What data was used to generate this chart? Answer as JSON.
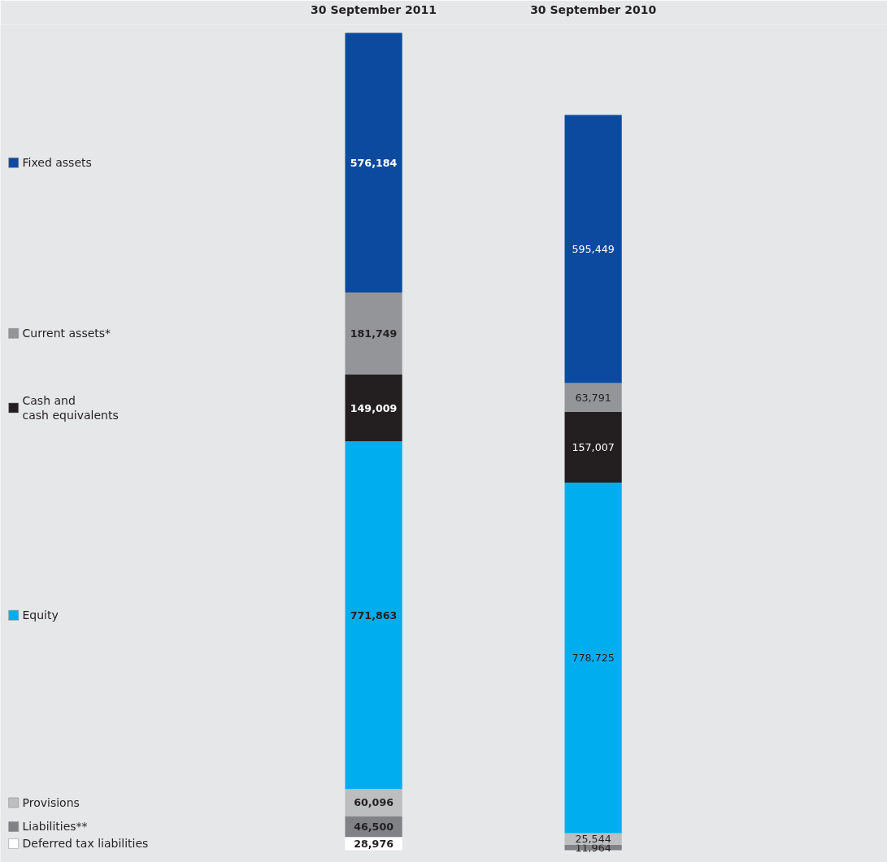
{
  "chart_data": {
    "type": "bar",
    "stacked": true,
    "legend": "left",
    "categories": [
      "30 September 2011",
      "30 September 2010"
    ],
    "series": [
      {
        "name": "Deferred tax liabilities",
        "color": "#ffffff",
        "values": [
          28976,
          null
        ],
        "value_labels": [
          "28,976",
          null
        ]
      },
      {
        "name": "Liabilities**",
        "color": "#808285",
        "values": [
          46500,
          11964
        ],
        "value_labels": [
          "46,500",
          "11,964"
        ]
      },
      {
        "name": "Provisions",
        "color": "#bcbec0",
        "values": [
          60096,
          25544
        ],
        "value_labels": [
          "60,096",
          "25,544"
        ]
      },
      {
        "name": "Equity",
        "color": "#00aeef",
        "values": [
          771863,
          778725
        ],
        "value_labels": [
          "771,863",
          "778,725"
        ]
      },
      {
        "name": "Cash and\ncash equivalents",
        "color": "#231f20",
        "values": [
          149009,
          157007
        ],
        "value_labels": [
          "149,009",
          "157,007"
        ]
      },
      {
        "name": "Current assets*",
        "color": "#939598",
        "values": [
          181749,
          63791
        ],
        "value_labels": [
          "181,749",
          "63,791"
        ]
      },
      {
        "name": "Fixed assets",
        "color": "#0b4a9e",
        "values": [
          576184,
          595449
        ],
        "value_labels": [
          "576,184",
          "595,449"
        ]
      }
    ]
  }
}
